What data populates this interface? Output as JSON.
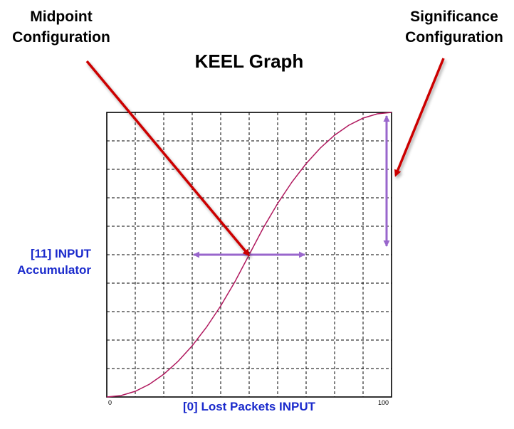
{
  "callouts": {
    "midpoint": {
      "line1": "Midpoint",
      "line2": "Configuration"
    },
    "significance": {
      "line1": "Significance",
      "line2": "Configuration"
    }
  },
  "graph": {
    "title": "KEEL Graph",
    "y_label": {
      "line1": "[11] INPUT",
      "line2": "Accumulator"
    },
    "x_label": "[0] Lost Packets INPUT",
    "x_tick_min": "0",
    "x_tick_max": "100"
  },
  "chart_data": {
    "type": "line",
    "x_range": [
      0,
      100
    ],
    "y_range": [
      0,
      100
    ],
    "grid": true,
    "grid_divisions": 10,
    "midpoint": [
      50,
      50
    ],
    "series": [
      {
        "x": [
          0,
          5,
          10,
          15,
          20,
          25,
          30,
          35,
          40,
          45,
          50,
          55,
          60,
          65,
          70,
          75,
          80,
          85,
          90,
          95,
          100
        ],
        "y": [
          0,
          0.5,
          2,
          4.5,
          8,
          12.5,
          18,
          24.5,
          32,
          40.5,
          50,
          59.5,
          68,
          75.5,
          82,
          87.5,
          92,
          95.5,
          98,
          99.5,
          100
        ]
      }
    ]
  },
  "colors": {
    "curve": "#b0185e",
    "indicator": "#9966cc",
    "callout_arrow": "#cc0000",
    "axis_label": "#1a2acc",
    "grid": "#000000"
  }
}
